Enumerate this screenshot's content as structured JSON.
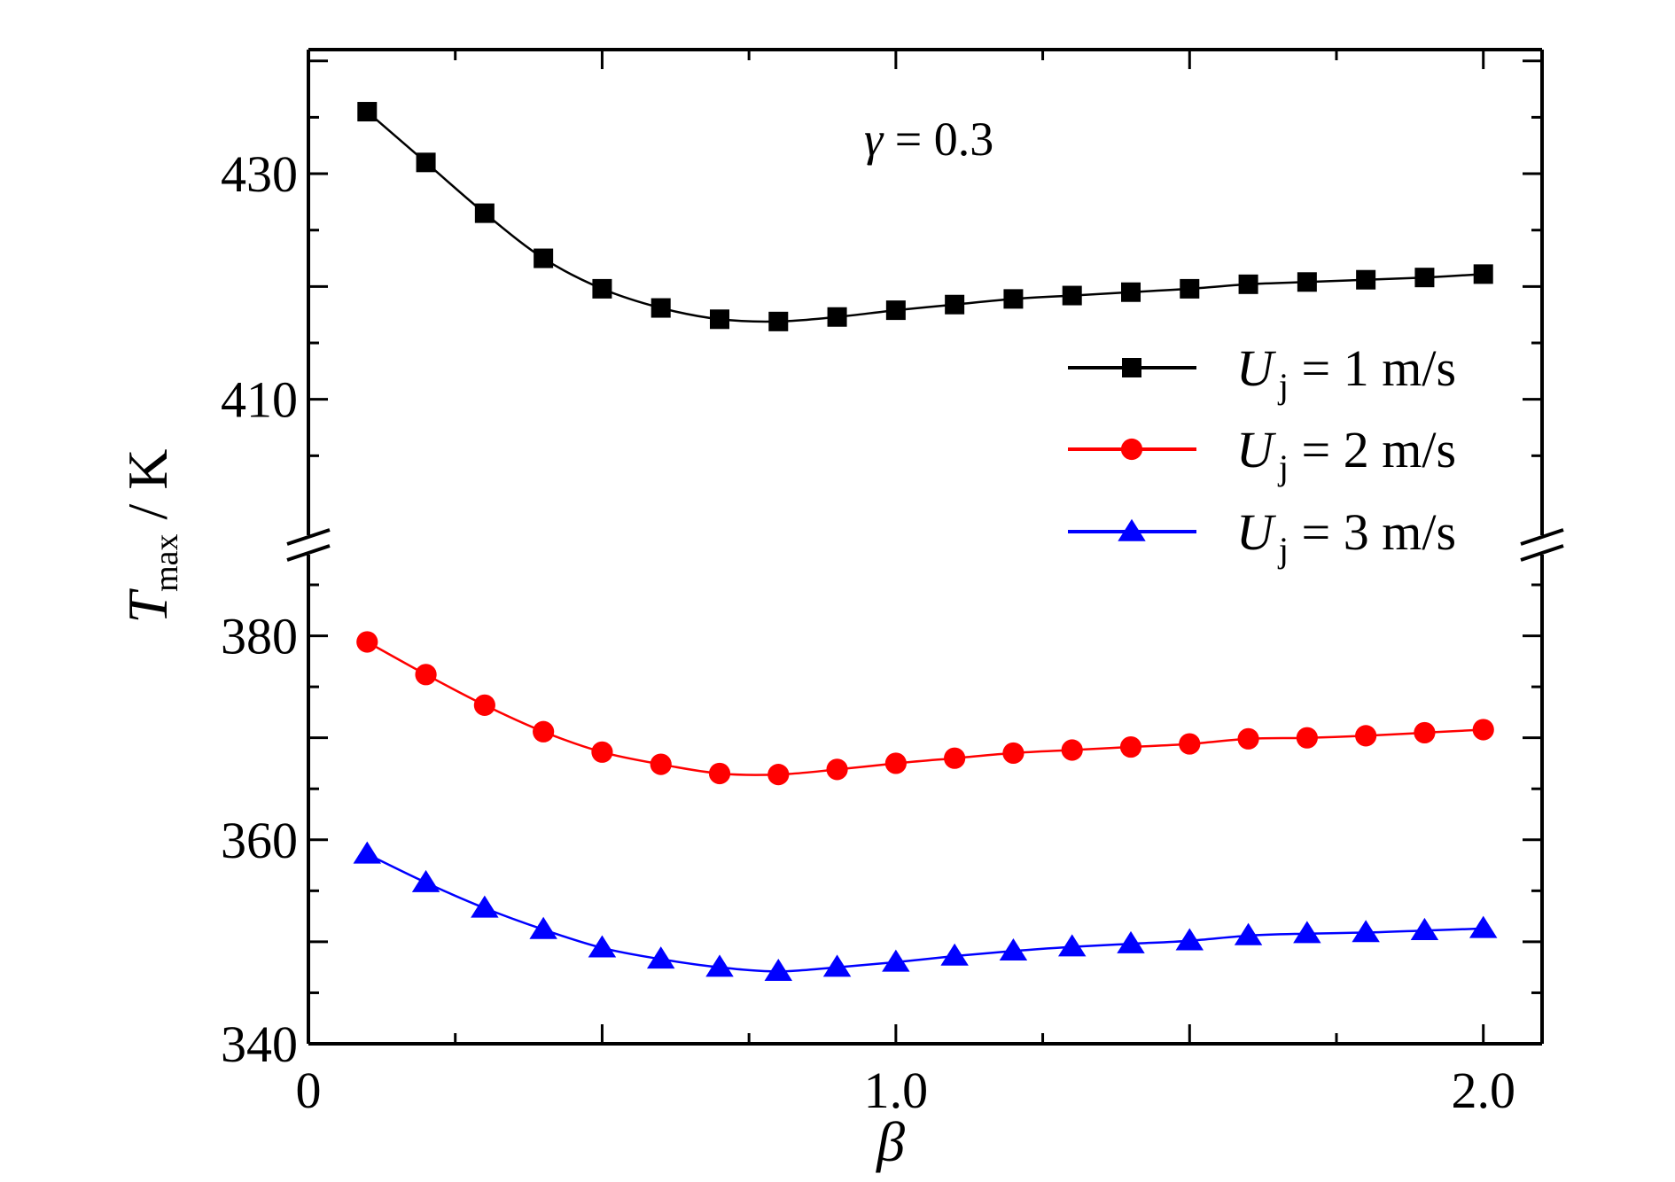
{
  "chart_data": {
    "type": "line",
    "annotation": {
      "symbol": "γ",
      "text": " = 0.3"
    },
    "xlabel": "β",
    "ylabel": {
      "symbol": "T",
      "subscript": "max",
      "unit": " / K"
    },
    "x_ticks": [
      {
        "value": 0,
        "label": "0"
      },
      {
        "value": 1.0,
        "label": "1.0"
      },
      {
        "value": 2.0,
        "label": "2.0"
      }
    ],
    "y_ticks_upper": [
      {
        "value": 410,
        "label": "410"
      },
      {
        "value": 430,
        "label": "430"
      }
    ],
    "y_ticks_lower": [
      {
        "value": 340,
        "label": "340"
      },
      {
        "value": 360,
        "label": "360"
      },
      {
        "value": 380,
        "label": "380"
      }
    ],
    "xlim": [
      0,
      2.1
    ],
    "ylim_lower": [
      340,
      387
    ],
    "ylim_upper": [
      400,
      441
    ],
    "axis_break": true,
    "grid": false,
    "legend_position": "right-center",
    "x": [
      0.1,
      0.2,
      0.3,
      0.4,
      0.5,
      0.6,
      0.7,
      0.8,
      0.9,
      1.0,
      1.1,
      1.2,
      1.3,
      1.4,
      1.5,
      1.6,
      1.7,
      1.8,
      1.9,
      2.0
    ],
    "series": [
      {
        "name": "U_j = 1 m/s",
        "legend": {
          "symbol": "U",
          "subscript": "j",
          "text": " = 1 m/s"
        },
        "color": "#000000",
        "marker": "square",
        "segment": "upper",
        "values": [
          435.5,
          431.0,
          426.5,
          422.5,
          419.8,
          418.1,
          417.1,
          416.9,
          417.3,
          417.9,
          418.4,
          418.9,
          419.2,
          419.5,
          419.8,
          420.2,
          420.4,
          420.6,
          420.8,
          421.1
        ]
      },
      {
        "name": "U_j = 2 m/s",
        "legend": {
          "symbol": "U",
          "subscript": "j",
          "text": " = 2 m/s"
        },
        "color": "#ff0000",
        "marker": "circle",
        "segment": "lower",
        "values": [
          379.4,
          376.2,
          373.2,
          370.6,
          368.6,
          367.4,
          366.5,
          366.4,
          366.9,
          367.5,
          368.0,
          368.5,
          368.8,
          369.1,
          369.4,
          369.9,
          370.0,
          370.2,
          370.5,
          370.8
        ]
      },
      {
        "name": "U_j = 3 m/s",
        "legend": {
          "symbol": "U",
          "subscript": "j",
          "text": " = 3 m/s"
        },
        "color": "#0000ff",
        "marker": "triangle",
        "segment": "lower",
        "values": [
          358.6,
          355.8,
          353.3,
          351.2,
          349.4,
          348.3,
          347.5,
          347.1,
          347.5,
          348.0,
          348.6,
          349.1,
          349.5,
          349.8,
          350.1,
          350.6,
          350.8,
          350.9,
          351.1,
          351.3
        ]
      }
    ]
  }
}
